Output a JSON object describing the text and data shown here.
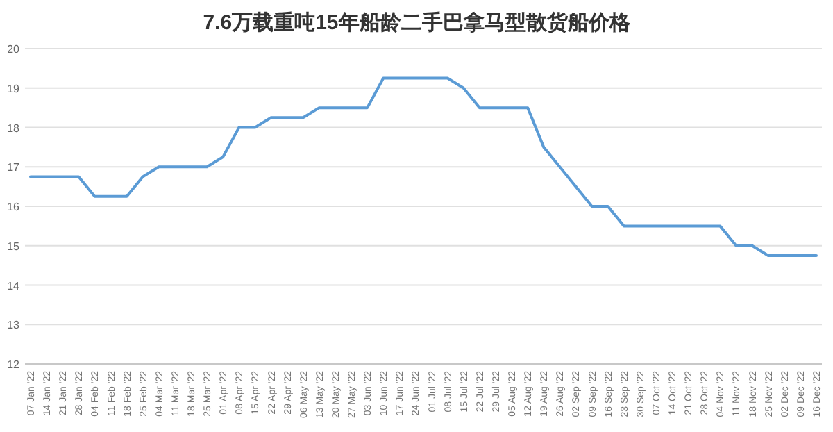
{
  "chart_data": {
    "type": "line",
    "title": "7.6万载重吨15年船龄二手巴拿马型散货船价格",
    "categories": [
      "07 Jan '22",
      "14 Jan '22",
      "21 Jan '22",
      "28 Jan '22",
      "04 Feb '22",
      "11 Feb '22",
      "18 Feb '22",
      "25 Feb '22",
      "04 Mar '22",
      "11 Mar '22",
      "18 Mar '22",
      "25 Mar '22",
      "01 Apr '22",
      "08 Apr '22",
      "15 Apr '22",
      "22 Apr '22",
      "29 Apr '22",
      "06 May '22",
      "13 May '22",
      "20 May '22",
      "27 May '22",
      "03 Jun '22",
      "10 Jun '22",
      "17 Jun '22",
      "24 Jun '22",
      "01 Jul '22",
      "08 Jul '22",
      "15 Jul '22",
      "22 Jul '22",
      "29 Jul '22",
      "05 Aug '22",
      "12 Aug '22",
      "19 Aug '22",
      "26 Aug '22",
      "02 Sep '22",
      "09 Sep '22",
      "16 Sep '22",
      "23 Sep '22",
      "30 Sep '22",
      "07 Oct '22",
      "14 Oct '22",
      "21 Oct '22",
      "28 Oct '22",
      "04 Nov '22",
      "11 Nov '22",
      "18 Nov '22",
      "25 Nov '22",
      "02 Dec '22",
      "09 Dec '22",
      "16 Dec '22"
    ],
    "series": [
      {
        "color": "#5b9bd5",
        "values": [
          16.75,
          16.75,
          16.75,
          16.75,
          16.25,
          16.25,
          16.25,
          16.75,
          17,
          17,
          17,
          17,
          17.25,
          18,
          18,
          18.25,
          18.25,
          18.25,
          18.5,
          18.5,
          18.5,
          18.5,
          19.25,
          19.25,
          19.25,
          19.25,
          19.25,
          19,
          18.5,
          18.5,
          18.5,
          18.5,
          17.5,
          17,
          16.5,
          16,
          16,
          15.5,
          15.5,
          15.5,
          15.5,
          15.5,
          15.5,
          15.5,
          15,
          15,
          14.75,
          14.75,
          14.75,
          14.75
        ]
      }
    ],
    "ylim": [
      12,
      20
    ],
    "yticks": [
      12,
      13,
      14,
      15,
      16,
      17,
      18,
      19,
      20
    ],
    "grid": "y"
  }
}
